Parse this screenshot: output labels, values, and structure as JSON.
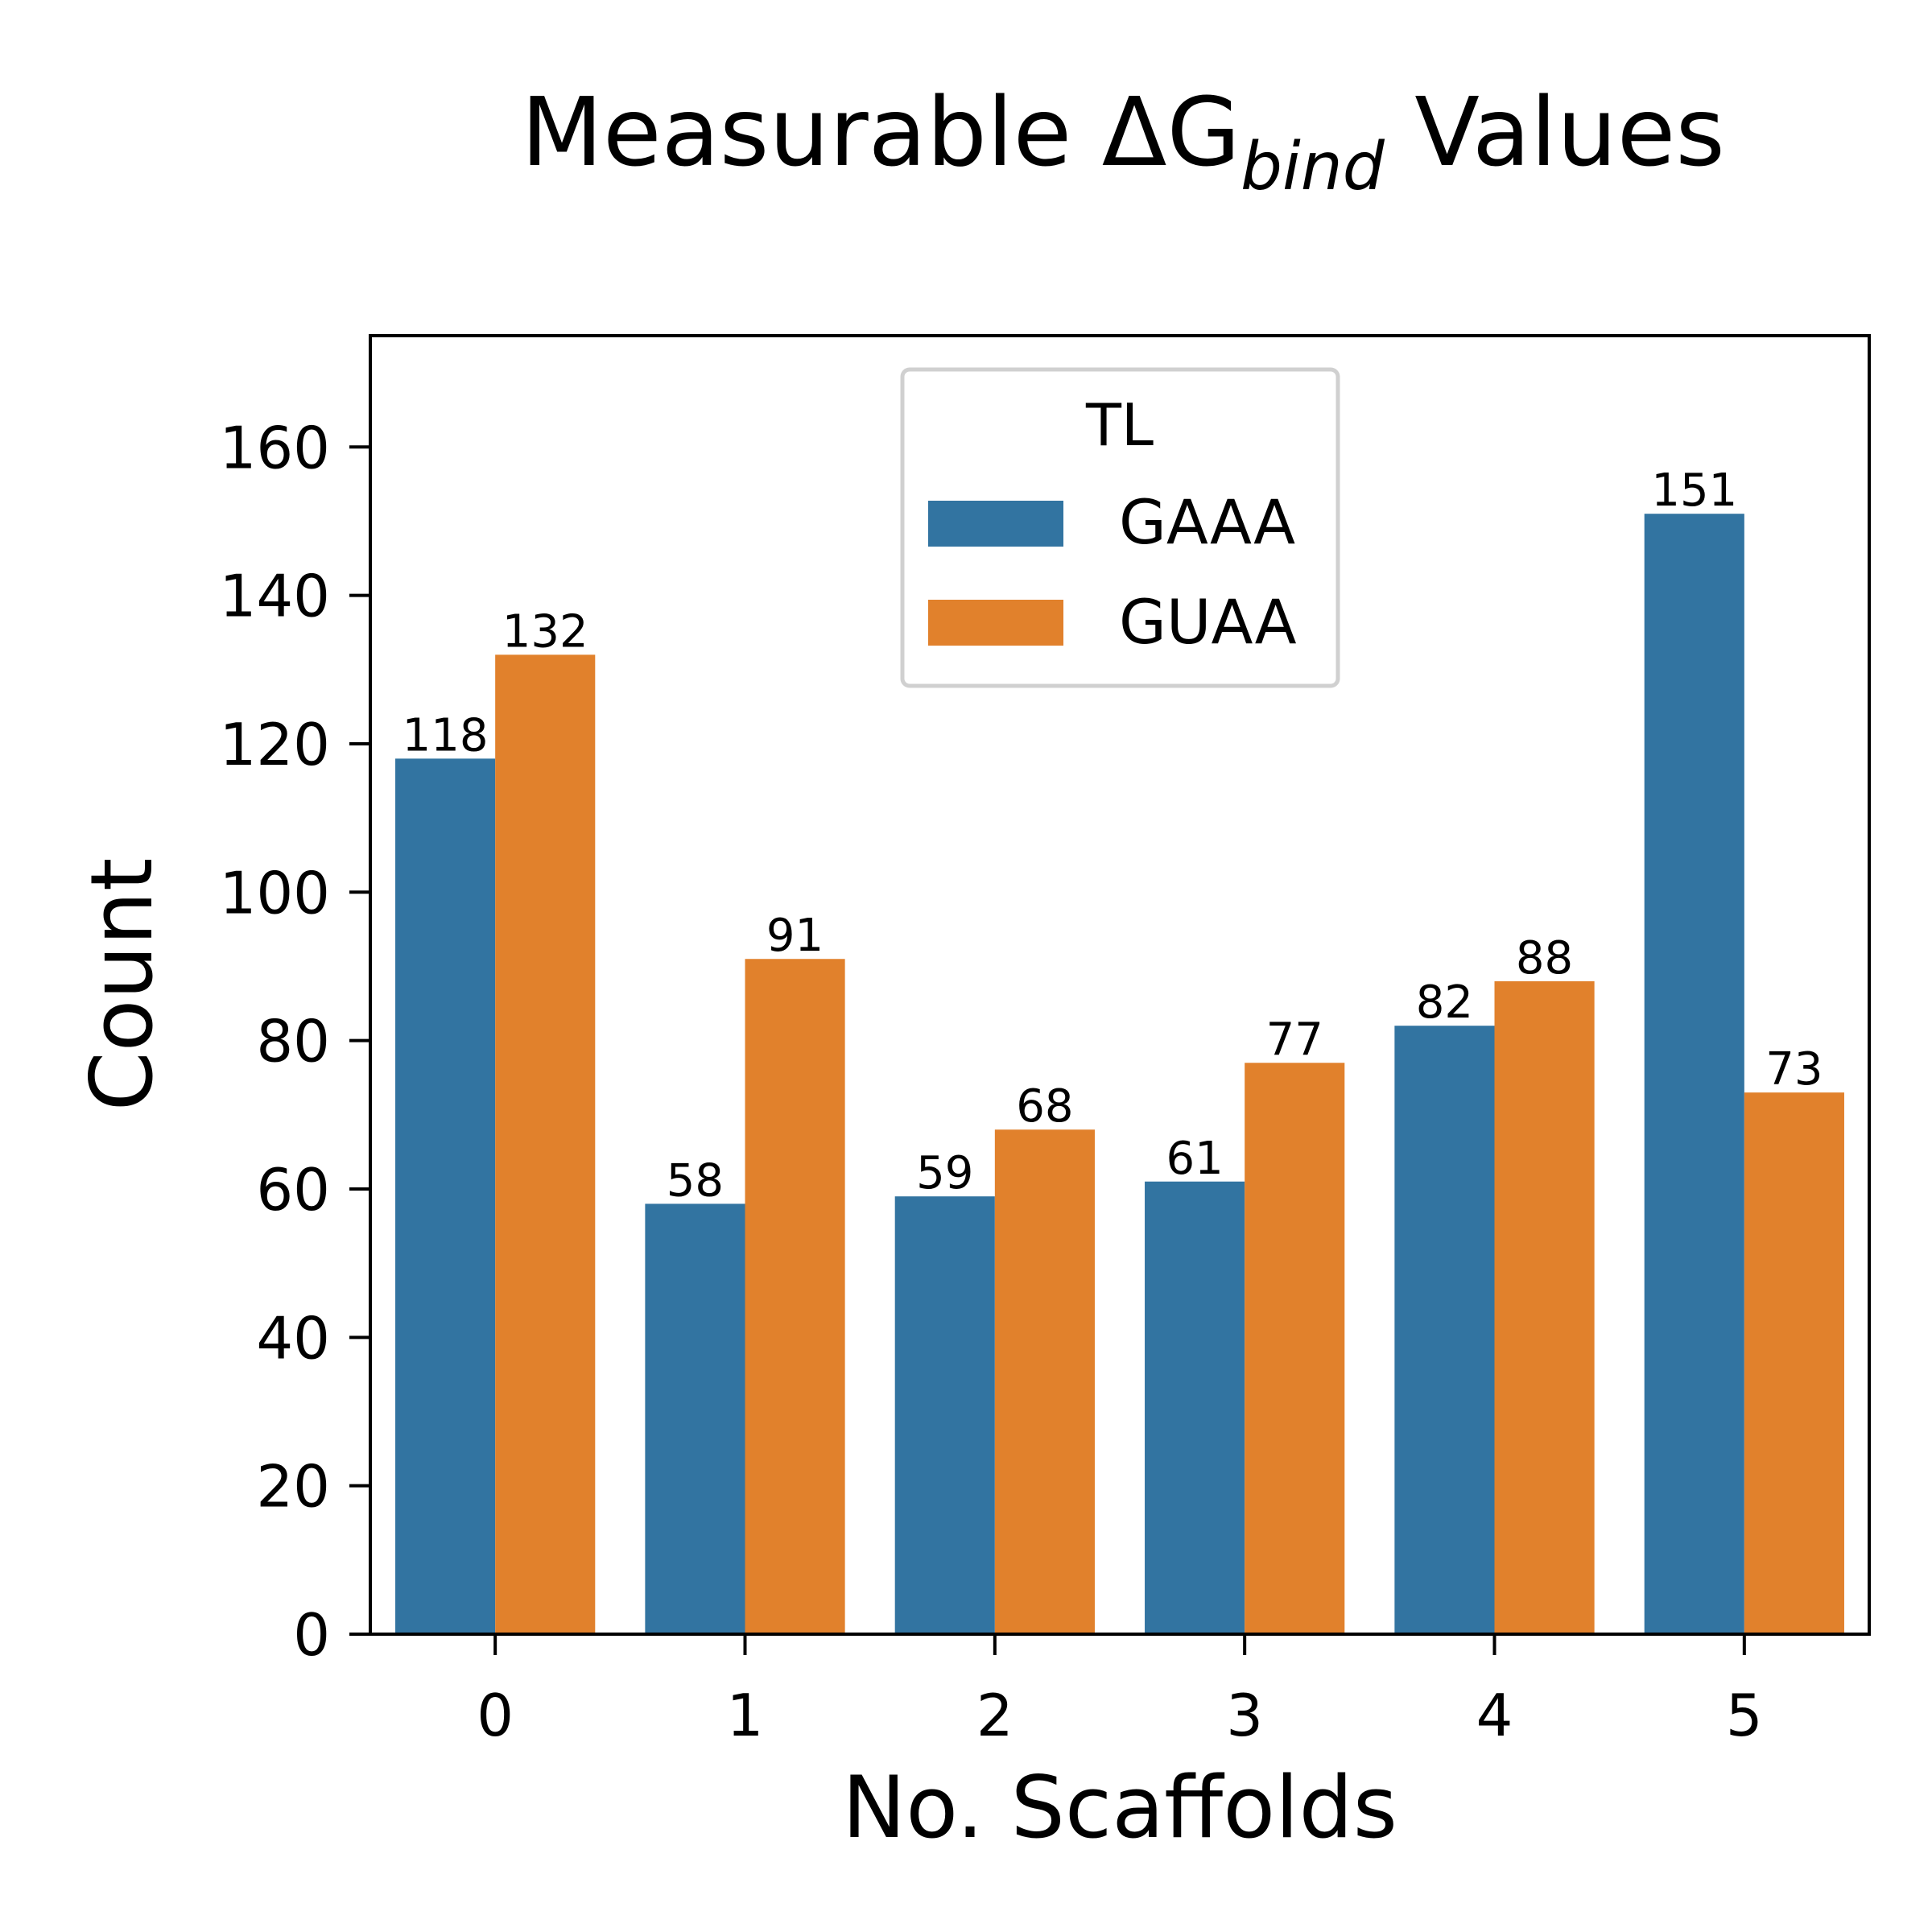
{
  "chart_data": {
    "type": "bar",
    "title": {
      "main": "Measurable ΔG",
      "sub": "bind",
      "tail": " Values"
    },
    "xlabel": "No. Scaffolds",
    "ylabel": "Count",
    "categories": [
      "0",
      "1",
      "2",
      "3",
      "4",
      "5"
    ],
    "ylim": [
      0,
      175
    ],
    "yticks": [
      0,
      20,
      40,
      60,
      80,
      100,
      120,
      140,
      160
    ],
    "grid": false,
    "legend": {
      "title": "TL",
      "placement": "top-center"
    },
    "series": [
      {
        "name": "GAAA",
        "color": "#3274a1",
        "values": [
          118,
          58,
          59,
          61,
          82,
          151
        ]
      },
      {
        "name": "GUAA",
        "color": "#e1812c",
        "values": [
          132,
          91,
          68,
          77,
          88,
          73
        ]
      }
    ],
    "data_labels": true
  }
}
